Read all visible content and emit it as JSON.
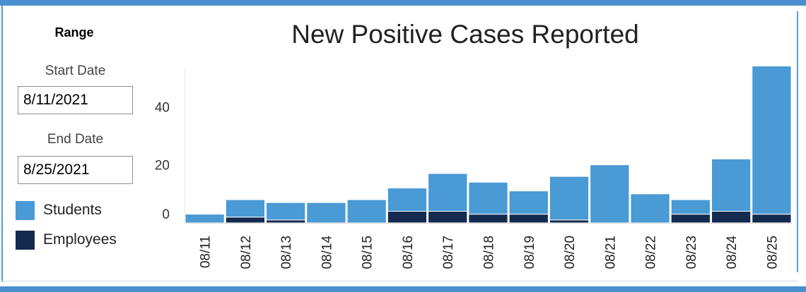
{
  "range": {
    "title": "Range",
    "start_label": "Start Date",
    "start_value": "8/11/2021",
    "end_label": "End Date",
    "end_value": "8/25/2021"
  },
  "legend": [
    {
      "label": "Students",
      "color": "#4a9ad5"
    },
    {
      "label": "Employees",
      "color": "#142a4e"
    }
  ],
  "chart_data": {
    "type": "bar",
    "stacked": true,
    "title": "New Positive Cases Reported",
    "categories": [
      "08/11",
      "08/12",
      "08/13",
      "08/14",
      "08/15",
      "08/16",
      "08/17",
      "08/18",
      "08/19",
      "08/20",
      "08/21",
      "08/22",
      "08/23",
      "08/24",
      "08/25"
    ],
    "series": [
      {
        "name": "Employees",
        "color": "#142a4e",
        "values": [
          0,
          2,
          1,
          0,
          0,
          4,
          4,
          3,
          3,
          1,
          0,
          0,
          3,
          4,
          3
        ]
      },
      {
        "name": "Students",
        "color": "#4a9ad5",
        "values": [
          3,
          6,
          6,
          7,
          8,
          8,
          13,
          11,
          8,
          15,
          20,
          10,
          5,
          18,
          51
        ]
      }
    ],
    "yticks": [
      0,
      20,
      40
    ],
    "ylim": [
      0,
      54
    ],
    "grid": false,
    "legend_position": "left"
  }
}
